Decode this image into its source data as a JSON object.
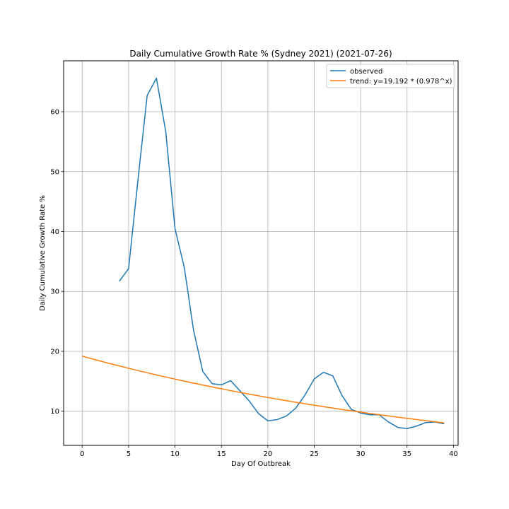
{
  "chart_data": {
    "type": "line",
    "title": "Daily Cumulative Growth Rate % (Sydney 2021) (2021-07-26)",
    "xlabel": "Day Of Outbreak",
    "ylabel": "Daily Cumulative Growth Rate %",
    "xlim": [
      -2,
      40.5
    ],
    "ylim": [
      4.3,
      68.5
    ],
    "xticks": [
      0,
      5,
      10,
      15,
      20,
      25,
      30,
      35,
      40
    ],
    "yticks": [
      10,
      20,
      30,
      40,
      50,
      60
    ],
    "grid": true,
    "legend_position": "top-right",
    "series": [
      {
        "name": "observed",
        "color": "#1f77b4",
        "x": [
          4,
          5,
          6,
          7,
          8,
          9,
          10,
          11,
          12,
          13,
          14,
          15,
          16,
          17,
          18,
          19,
          20,
          21,
          22,
          23,
          24,
          25,
          26,
          27,
          28,
          29,
          30,
          31,
          32,
          33,
          34,
          35,
          36,
          37,
          38,
          39
        ],
        "y": [
          31.7,
          33.8,
          48.5,
          62.7,
          65.6,
          56.7,
          40.5,
          34.0,
          23.5,
          16.6,
          14.6,
          14.4,
          15.1,
          13.4,
          11.7,
          9.6,
          8.4,
          8.6,
          9.2,
          10.5,
          12.7,
          15.4,
          16.5,
          15.9,
          12.6,
          10.3,
          9.7,
          9.4,
          9.4,
          8.2,
          7.3,
          7.1,
          7.5,
          8.1,
          8.2,
          7.9
        ]
      },
      {
        "name": "trend: y=19.192 * (0.978^x)",
        "color": "#ff7f0e",
        "x": [
          0,
          1,
          2,
          3,
          4,
          5,
          6,
          7,
          8,
          9,
          10,
          11,
          12,
          13,
          14,
          15,
          16,
          17,
          18,
          19,
          20,
          21,
          22,
          23,
          24,
          25,
          26,
          27,
          28,
          29,
          30,
          31,
          32,
          33,
          34,
          35,
          36,
          37,
          38,
          39
        ],
        "y": [
          19.19,
          18.77,
          18.36,
          17.95,
          17.56,
          17.17,
          16.79,
          16.42,
          16.06,
          15.71,
          15.36,
          15.02,
          14.69,
          14.37,
          14.05,
          13.74,
          13.44,
          13.15,
          12.86,
          12.57,
          12.3,
          12.03,
          11.76,
          11.5,
          11.25,
          11.0,
          10.76,
          10.52,
          10.29,
          10.07,
          9.85,
          9.63,
          9.42,
          9.21,
          9.01,
          8.81,
          8.62,
          8.43,
          8.24,
          8.06
        ]
      }
    ]
  }
}
